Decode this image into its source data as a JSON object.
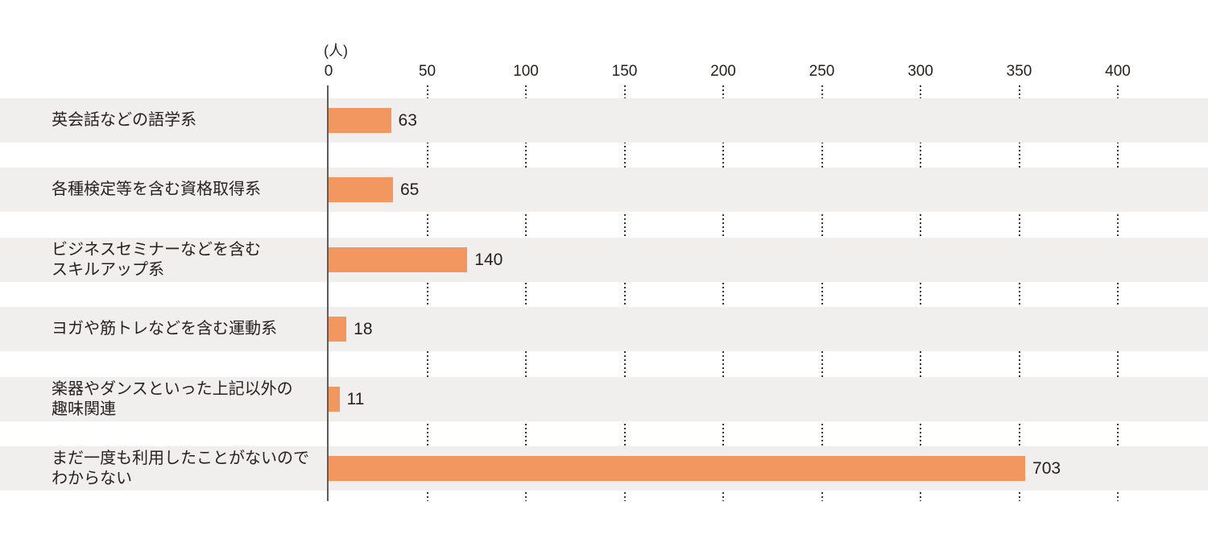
{
  "chart_data": {
    "type": "bar",
    "orientation": "horizontal",
    "title": "",
    "unit_label": "(人)",
    "xlabel": "",
    "ylabel": "",
    "axis_ticks": [
      0,
      50,
      100,
      150,
      200,
      250,
      300,
      350,
      400
    ],
    "xlim": [
      0,
      400
    ],
    "grid": "dotted-vertical-between-rows",
    "legend": "none",
    "categories": [
      "英会話などの語学系",
      "各種検定等を含む資格取得系",
      "ビジネスセミナーなどを含む\nスキルアップ系",
      "ヨガや筋トレなどを含む運動系",
      "楽器やダンスといった上記以外の\n趣味関連",
      "まだ一度も利用したことがないので\nわからない"
    ],
    "values": [
      63,
      65,
      140,
      18,
      11,
      703
    ],
    "colors": {
      "bar": "#f2975f",
      "row_band": "#f0efed",
      "text": "#262220",
      "axis_line": "#5f5b58",
      "grid_dot": "#3a3633",
      "background": "#ffffff"
    }
  }
}
